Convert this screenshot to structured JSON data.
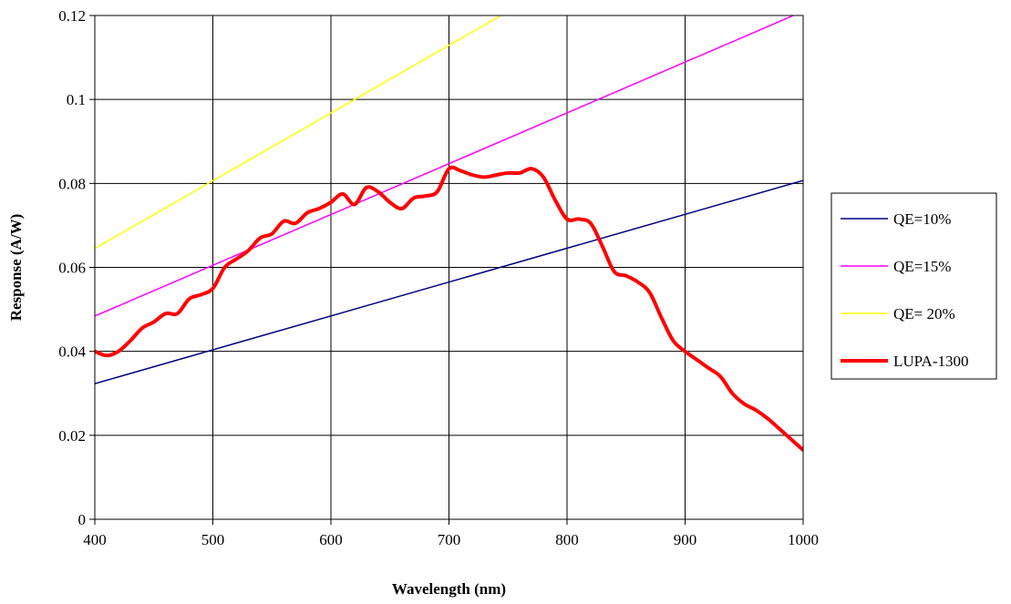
{
  "chart_data": {
    "type": "line",
    "title": "",
    "xlabel": "Wavelength (nm)",
    "ylabel": "Response (A/W)",
    "xlim": [
      400,
      1000
    ],
    "ylim": [
      0,
      0.12
    ],
    "x_ticks": [
      400,
      500,
      600,
      700,
      800,
      900,
      1000
    ],
    "x_tick_labels": [
      "400",
      "500",
      "600",
      "700",
      "800",
      "900",
      "1000"
    ],
    "y_ticks": [
      0,
      0.02,
      0.04,
      0.06,
      0.08,
      0.1,
      0.12
    ],
    "y_tick_labels": [
      "0",
      "0.02",
      "0.04",
      "0.06",
      "0.08",
      "0.1",
      "0.12"
    ],
    "grid": true,
    "legend_position": "right",
    "series": [
      {
        "name": "QE=10%",
        "color": "#000080",
        "x": [
          400,
          1000
        ],
        "y": [
          0.0323,
          0.0807
        ]
      },
      {
        "name": "QE=15%",
        "color": "#ff00ff",
        "x": [
          400,
          1000
        ],
        "y": [
          0.0484,
          0.121
        ]
      },
      {
        "name": "QE= 20%",
        "color": "#ffff00",
        "x": [
          400,
          1000
        ],
        "y": [
          0.0645,
          0.1613
        ]
      },
      {
        "name": "LUPA-1300",
        "color": "#ff0000",
        "x": [
          400,
          410,
          420,
          430,
          440,
          450,
          460,
          470,
          480,
          490,
          500,
          510,
          520,
          530,
          540,
          550,
          560,
          570,
          580,
          590,
          600,
          610,
          620,
          630,
          640,
          650,
          660,
          670,
          680,
          690,
          700,
          710,
          720,
          730,
          740,
          750,
          760,
          770,
          780,
          790,
          800,
          810,
          820,
          830,
          840,
          850,
          860,
          870,
          880,
          890,
          900,
          910,
          920,
          930,
          940,
          950,
          960,
          970,
          980,
          990,
          1000
        ],
        "y": [
          0.04,
          0.039,
          0.04,
          0.0425,
          0.0455,
          0.047,
          0.049,
          0.049,
          0.0525,
          0.0535,
          0.055,
          0.06,
          0.062,
          0.064,
          0.067,
          0.068,
          0.071,
          0.0705,
          0.073,
          0.074,
          0.0755,
          0.0775,
          0.075,
          0.079,
          0.078,
          0.0755,
          0.074,
          0.0765,
          0.077,
          0.078,
          0.0835,
          0.083,
          0.082,
          0.0815,
          0.082,
          0.0825,
          0.0825,
          0.0835,
          0.0815,
          0.076,
          0.0715,
          0.0715,
          0.0705,
          0.065,
          0.059,
          0.058,
          0.0565,
          0.054,
          0.048,
          0.0425,
          0.04,
          0.038,
          0.036,
          0.034,
          0.03,
          0.0275,
          0.026,
          0.024,
          0.0215,
          0.019,
          0.0165
        ]
      }
    ]
  }
}
